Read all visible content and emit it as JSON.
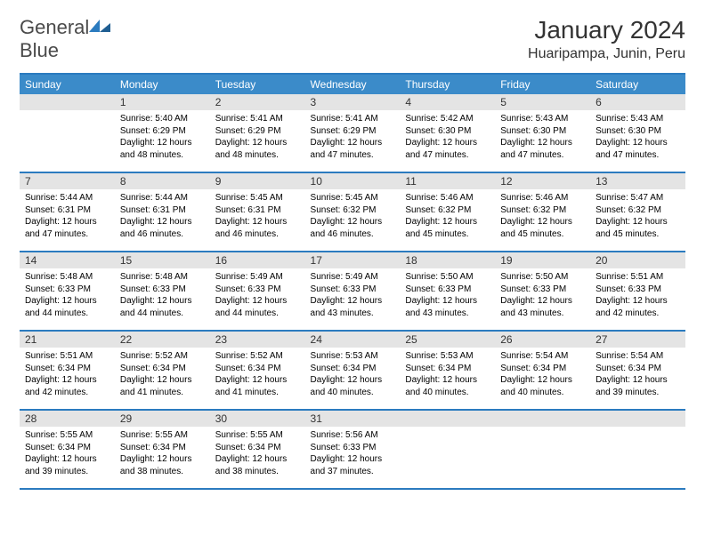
{
  "logo": {
    "general": "General",
    "blue": "Blue"
  },
  "title": "January 2024",
  "location": "Huaripampa, Junin, Peru",
  "colors": {
    "header_bg": "#3b8bc9",
    "header_text": "#ffffff",
    "border": "#2b7bbf",
    "daynum_bg": "#e4e4e4",
    "text": "#000000",
    "logo_gray": "#4a4a4a",
    "logo_blue": "#2b7bbf",
    "page_bg": "#ffffff"
  },
  "typography": {
    "title_fontsize": 28,
    "location_fontsize": 16,
    "dayhead_fontsize": 12,
    "daynum_fontsize": 12,
    "body_fontsize": 10
  },
  "day_headers": [
    "Sunday",
    "Monday",
    "Tuesday",
    "Wednesday",
    "Thursday",
    "Friday",
    "Saturday"
  ],
  "weeks": [
    [
      {
        "num": "",
        "lines": []
      },
      {
        "num": "1",
        "lines": [
          "Sunrise: 5:40 AM",
          "Sunset: 6:29 PM",
          "Daylight: 12 hours",
          "and 48 minutes."
        ]
      },
      {
        "num": "2",
        "lines": [
          "Sunrise: 5:41 AM",
          "Sunset: 6:29 PM",
          "Daylight: 12 hours",
          "and 48 minutes."
        ]
      },
      {
        "num": "3",
        "lines": [
          "Sunrise: 5:41 AM",
          "Sunset: 6:29 PM",
          "Daylight: 12 hours",
          "and 47 minutes."
        ]
      },
      {
        "num": "4",
        "lines": [
          "Sunrise: 5:42 AM",
          "Sunset: 6:30 PM",
          "Daylight: 12 hours",
          "and 47 minutes."
        ]
      },
      {
        "num": "5",
        "lines": [
          "Sunrise: 5:43 AM",
          "Sunset: 6:30 PM",
          "Daylight: 12 hours",
          "and 47 minutes."
        ]
      },
      {
        "num": "6",
        "lines": [
          "Sunrise: 5:43 AM",
          "Sunset: 6:30 PM",
          "Daylight: 12 hours",
          "and 47 minutes."
        ]
      }
    ],
    [
      {
        "num": "7",
        "lines": [
          "Sunrise: 5:44 AM",
          "Sunset: 6:31 PM",
          "Daylight: 12 hours",
          "and 47 minutes."
        ]
      },
      {
        "num": "8",
        "lines": [
          "Sunrise: 5:44 AM",
          "Sunset: 6:31 PM",
          "Daylight: 12 hours",
          "and 46 minutes."
        ]
      },
      {
        "num": "9",
        "lines": [
          "Sunrise: 5:45 AM",
          "Sunset: 6:31 PM",
          "Daylight: 12 hours",
          "and 46 minutes."
        ]
      },
      {
        "num": "10",
        "lines": [
          "Sunrise: 5:45 AM",
          "Sunset: 6:32 PM",
          "Daylight: 12 hours",
          "and 46 minutes."
        ]
      },
      {
        "num": "11",
        "lines": [
          "Sunrise: 5:46 AM",
          "Sunset: 6:32 PM",
          "Daylight: 12 hours",
          "and 45 minutes."
        ]
      },
      {
        "num": "12",
        "lines": [
          "Sunrise: 5:46 AM",
          "Sunset: 6:32 PM",
          "Daylight: 12 hours",
          "and 45 minutes."
        ]
      },
      {
        "num": "13",
        "lines": [
          "Sunrise: 5:47 AM",
          "Sunset: 6:32 PM",
          "Daylight: 12 hours",
          "and 45 minutes."
        ]
      }
    ],
    [
      {
        "num": "14",
        "lines": [
          "Sunrise: 5:48 AM",
          "Sunset: 6:33 PM",
          "Daylight: 12 hours",
          "and 44 minutes."
        ]
      },
      {
        "num": "15",
        "lines": [
          "Sunrise: 5:48 AM",
          "Sunset: 6:33 PM",
          "Daylight: 12 hours",
          "and 44 minutes."
        ]
      },
      {
        "num": "16",
        "lines": [
          "Sunrise: 5:49 AM",
          "Sunset: 6:33 PM",
          "Daylight: 12 hours",
          "and 44 minutes."
        ]
      },
      {
        "num": "17",
        "lines": [
          "Sunrise: 5:49 AM",
          "Sunset: 6:33 PM",
          "Daylight: 12 hours",
          "and 43 minutes."
        ]
      },
      {
        "num": "18",
        "lines": [
          "Sunrise: 5:50 AM",
          "Sunset: 6:33 PM",
          "Daylight: 12 hours",
          "and 43 minutes."
        ]
      },
      {
        "num": "19",
        "lines": [
          "Sunrise: 5:50 AM",
          "Sunset: 6:33 PM",
          "Daylight: 12 hours",
          "and 43 minutes."
        ]
      },
      {
        "num": "20",
        "lines": [
          "Sunrise: 5:51 AM",
          "Sunset: 6:33 PM",
          "Daylight: 12 hours",
          "and 42 minutes."
        ]
      }
    ],
    [
      {
        "num": "21",
        "lines": [
          "Sunrise: 5:51 AM",
          "Sunset: 6:34 PM",
          "Daylight: 12 hours",
          "and 42 minutes."
        ]
      },
      {
        "num": "22",
        "lines": [
          "Sunrise: 5:52 AM",
          "Sunset: 6:34 PM",
          "Daylight: 12 hours",
          "and 41 minutes."
        ]
      },
      {
        "num": "23",
        "lines": [
          "Sunrise: 5:52 AM",
          "Sunset: 6:34 PM",
          "Daylight: 12 hours",
          "and 41 minutes."
        ]
      },
      {
        "num": "24",
        "lines": [
          "Sunrise: 5:53 AM",
          "Sunset: 6:34 PM",
          "Daylight: 12 hours",
          "and 40 minutes."
        ]
      },
      {
        "num": "25",
        "lines": [
          "Sunrise: 5:53 AM",
          "Sunset: 6:34 PM",
          "Daylight: 12 hours",
          "and 40 minutes."
        ]
      },
      {
        "num": "26",
        "lines": [
          "Sunrise: 5:54 AM",
          "Sunset: 6:34 PM",
          "Daylight: 12 hours",
          "and 40 minutes."
        ]
      },
      {
        "num": "27",
        "lines": [
          "Sunrise: 5:54 AM",
          "Sunset: 6:34 PM",
          "Daylight: 12 hours",
          "and 39 minutes."
        ]
      }
    ],
    [
      {
        "num": "28",
        "lines": [
          "Sunrise: 5:55 AM",
          "Sunset: 6:34 PM",
          "Daylight: 12 hours",
          "and 39 minutes."
        ]
      },
      {
        "num": "29",
        "lines": [
          "Sunrise: 5:55 AM",
          "Sunset: 6:34 PM",
          "Daylight: 12 hours",
          "and 38 minutes."
        ]
      },
      {
        "num": "30",
        "lines": [
          "Sunrise: 5:55 AM",
          "Sunset: 6:34 PM",
          "Daylight: 12 hours",
          "and 38 minutes."
        ]
      },
      {
        "num": "31",
        "lines": [
          "Sunrise: 5:56 AM",
          "Sunset: 6:33 PM",
          "Daylight: 12 hours",
          "and 37 minutes."
        ]
      },
      {
        "num": "",
        "lines": []
      },
      {
        "num": "",
        "lines": []
      },
      {
        "num": "",
        "lines": []
      }
    ]
  ]
}
